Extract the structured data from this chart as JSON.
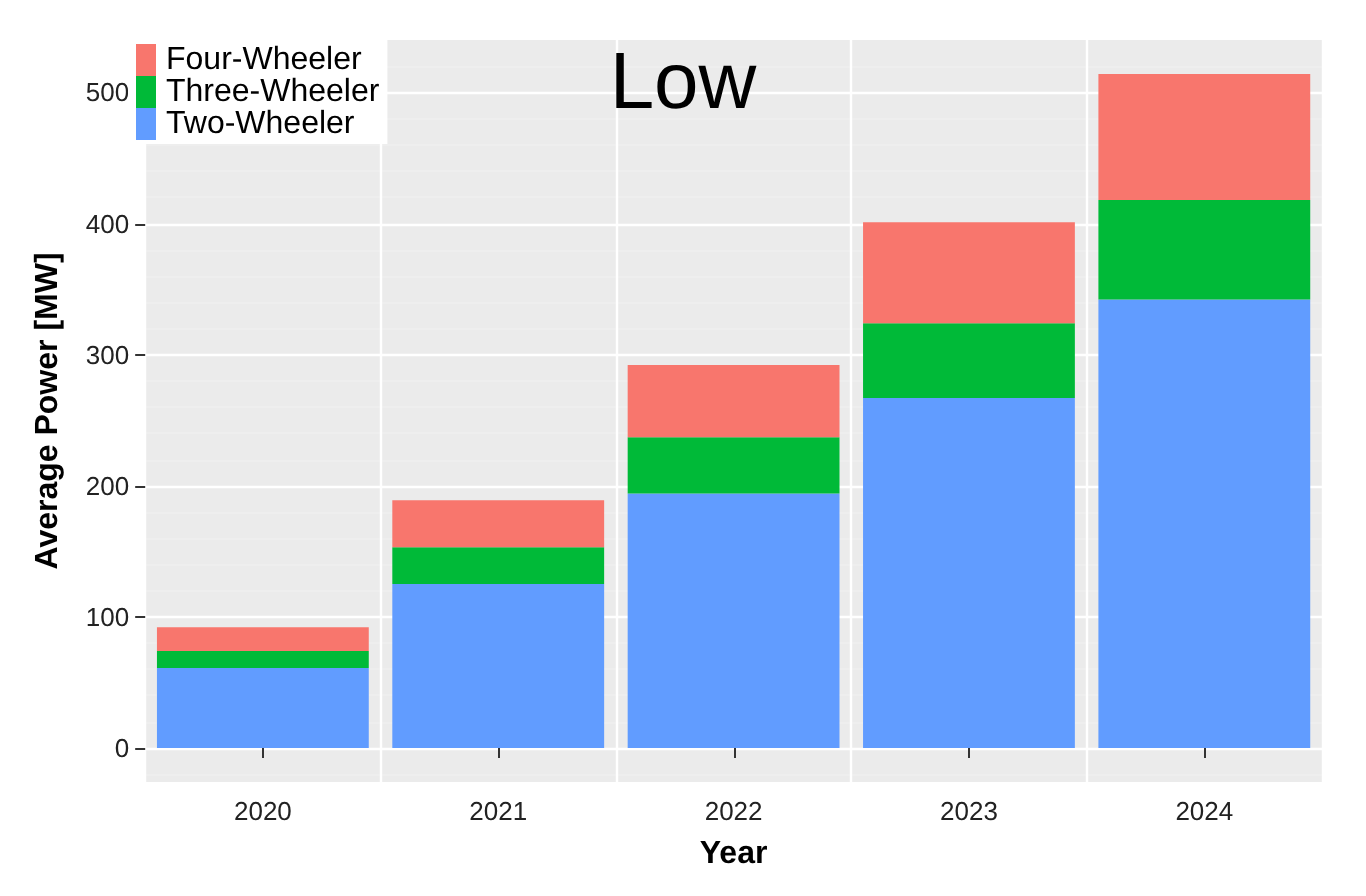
{
  "chart_data": {
    "type": "bar",
    "title": "Low",
    "xlabel": "Year",
    "ylabel": "Average Power [MW]",
    "categories": [
      "2020",
      "2021",
      "2022",
      "2023",
      "2024"
    ],
    "stacked": true,
    "series": [
      {
        "name": "Two-Wheeler",
        "color": "#619cff",
        "values": [
          61,
          125,
          194,
          267,
          342
        ]
      },
      {
        "name": "Three-Wheeler",
        "color": "#00ba38",
        "values": [
          13,
          28,
          43,
          57,
          76
        ]
      },
      {
        "name": "Four-Wheeler",
        "color": "#f8766d",
        "values": [
          18,
          36,
          55,
          77,
          96
        ]
      }
    ],
    "ylim": [
      -26,
      540
    ],
    "yticks": [
      0,
      100,
      200,
      300,
      400,
      500
    ],
    "grid": true,
    "legend": "top left"
  }
}
